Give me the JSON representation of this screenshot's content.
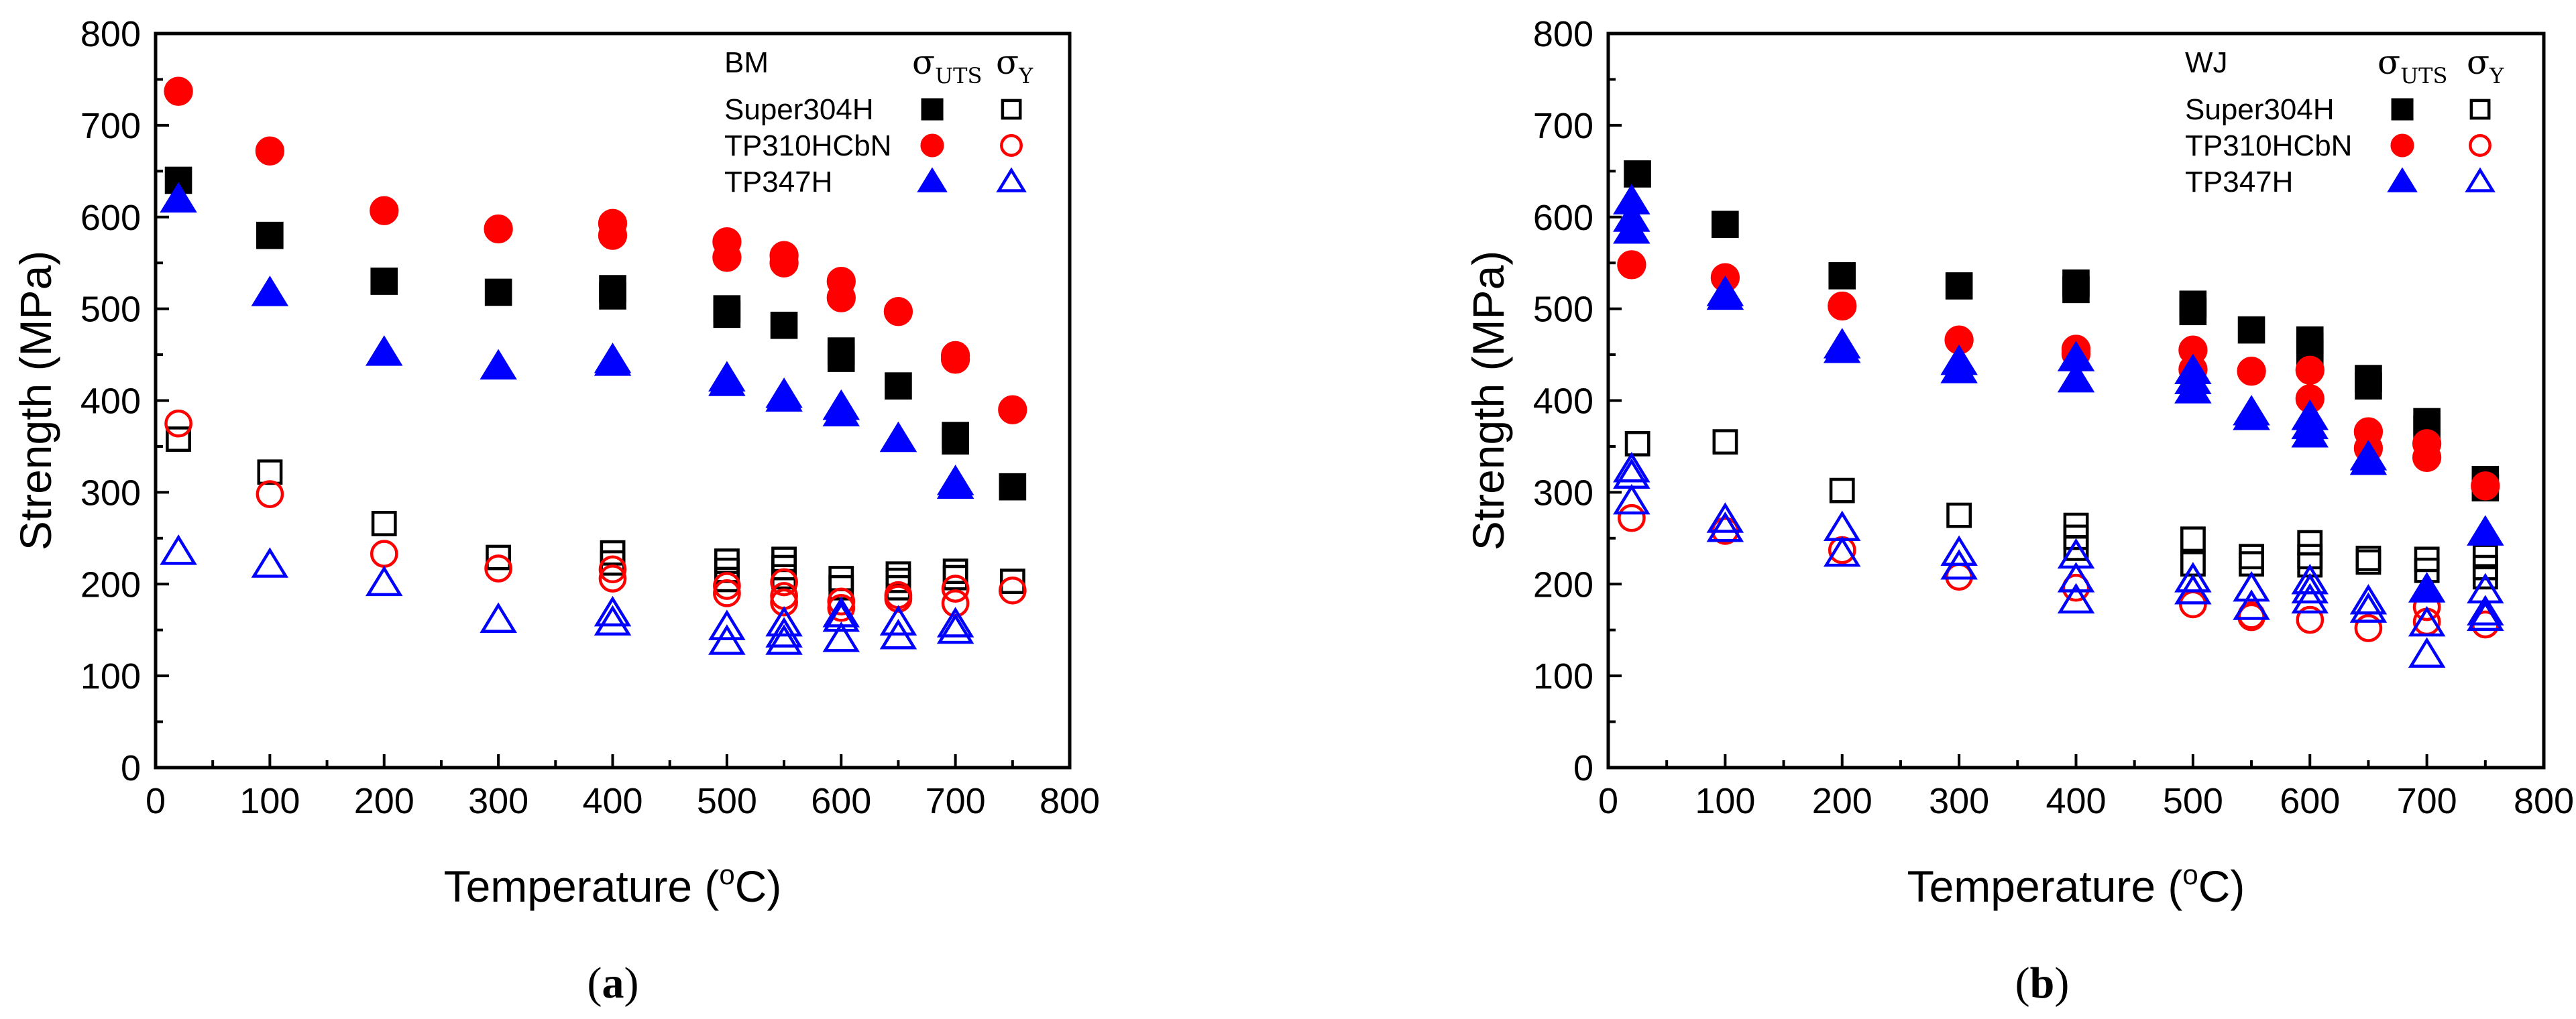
{
  "figure": {
    "panels": [
      {
        "caption_open": "(",
        "caption_letter": "a",
        "caption_close": ")",
        "title": "BM",
        "xlabel_prefix": "Temperature (",
        "xlabel_sup": "o",
        "xlabel_suffix": "C)",
        "ylabel": "Strength (MPa)",
        "legend_header": {
          "uts_sym": "σ",
          "uts_sub": "UTS",
          "y_sym": "σ",
          "y_sub": "Y"
        },
        "legend_entries": [
          "Super304H",
          "TP310HCbN",
          "TP347H"
        ]
      },
      {
        "caption_open": "(",
        "caption_letter": "b",
        "caption_close": ")",
        "title": "WJ",
        "xlabel_prefix": "Temperature (",
        "xlabel_sup": "o",
        "xlabel_suffix": "C)",
        "ylabel": "Strength (MPa)",
        "legend_header": {
          "uts_sym": "σ",
          "uts_sub": "UTS",
          "y_sym": "σ",
          "y_sub": "Y"
        },
        "legend_entries": [
          "Super304H",
          "TP310HCbN",
          "TP347H"
        ]
      }
    ]
  },
  "chart_data": [
    {
      "type": "scatter",
      "title": "BM",
      "xlabel": "Temperature (oC)",
      "ylabel": "Strength (MPa)",
      "xlim": [
        0,
        800
      ],
      "ylim": [
        0,
        800
      ],
      "xticks": [
        0,
        100,
        200,
        300,
        400,
        500,
        600,
        700,
        800
      ],
      "yticks": [
        0,
        100,
        200,
        300,
        400,
        500,
        600,
        700,
        800
      ],
      "grid": false,
      "legend_position": "top-right",
      "series": [
        {
          "name": "Super304H σUTS",
          "marker": "square",
          "fill": "filled",
          "color": "#000000",
          "points": [
            [
              20,
              640
            ],
            [
              100,
              580
            ],
            [
              200,
              530
            ],
            [
              300,
              518
            ],
            [
              400,
              522
            ],
            [
              400,
              514
            ],
            [
              500,
              500
            ],
            [
              500,
              494
            ],
            [
              550,
              482
            ],
            [
              600,
              454
            ],
            [
              600,
              446
            ],
            [
              650,
              416
            ],
            [
              700,
              362
            ],
            [
              700,
              356
            ],
            [
              750,
              306
            ]
          ]
        },
        {
          "name": "TP310HCbN σUTS",
          "marker": "circle",
          "fill": "filled",
          "color": "#ff0000",
          "points": [
            [
              20,
              737
            ],
            [
              100,
              672
            ],
            [
              200,
              607
            ],
            [
              300,
              587
            ],
            [
              400,
              593
            ],
            [
              400,
              580
            ],
            [
              500,
              573
            ],
            [
              500,
              556
            ],
            [
              550,
              558
            ],
            [
              550,
              550
            ],
            [
              600,
              530
            ],
            [
              600,
              512
            ],
            [
              650,
              497
            ],
            [
              700,
              449
            ],
            [
              700,
              445
            ],
            [
              750,
              390
            ]
          ]
        },
        {
          "name": "TP347H σUTS",
          "marker": "triangle",
          "fill": "filled",
          "color": "#0000ff",
          "points": [
            [
              20,
              619
            ],
            [
              100,
              517
            ],
            [
              200,
              452
            ],
            [
              300,
              437
            ],
            [
              400,
              444
            ],
            [
              400,
              441
            ],
            [
              500,
              424
            ],
            [
              500,
              419
            ],
            [
              550,
              406
            ],
            [
              550,
              402
            ],
            [
              600,
              393
            ],
            [
              600,
              386
            ],
            [
              650,
              358
            ],
            [
              700,
              311
            ],
            [
              700,
              307
            ]
          ]
        },
        {
          "name": "Super304H σY",
          "marker": "square",
          "fill": "open",
          "color": "#000000",
          "points": [
            [
              20,
              358
            ],
            [
              100,
              322
            ],
            [
              200,
              266
            ],
            [
              300,
              229
            ],
            [
              400,
              234
            ],
            [
              400,
              223
            ],
            [
              500,
              225
            ],
            [
              500,
              215
            ],
            [
              500,
              205
            ],
            [
              550,
              227
            ],
            [
              550,
              218
            ],
            [
              550,
              208
            ],
            [
              600,
              206
            ],
            [
              600,
              196
            ],
            [
              650,
              211
            ],
            [
              650,
              204
            ],
            [
              650,
              196
            ],
            [
              700,
              214
            ],
            [
              700,
              207
            ],
            [
              750,
              203
            ]
          ]
        },
        {
          "name": "TP310HCbN σY",
          "marker": "circle",
          "fill": "open",
          "color": "#ff0000",
          "points": [
            [
              20,
              375
            ],
            [
              100,
              298
            ],
            [
              200,
              233
            ],
            [
              300,
              217
            ],
            [
              400,
              216
            ],
            [
              400,
              206
            ],
            [
              500,
              198
            ],
            [
              500,
              190
            ],
            [
              550,
              202
            ],
            [
              550,
              187
            ],
            [
              550,
              180
            ],
            [
              600,
              181
            ],
            [
              600,
              174
            ],
            [
              650,
              188
            ],
            [
              650,
              184
            ],
            [
              700,
              195
            ],
            [
              700,
              179
            ],
            [
              750,
              193
            ]
          ]
        },
        {
          "name": "TP347H σY",
          "marker": "triangle",
          "fill": "open",
          "color": "#0000ff",
          "points": [
            [
              20,
              235
            ],
            [
              100,
              221
            ],
            [
              200,
              201
            ],
            [
              300,
              161
            ],
            [
              400,
              168
            ],
            [
              400,
              158
            ],
            [
              500,
              153
            ],
            [
              500,
              137
            ],
            [
              550,
              157
            ],
            [
              550,
              145
            ],
            [
              550,
              137
            ],
            [
              600,
              167
            ],
            [
              600,
              162
            ],
            [
              600,
              140
            ],
            [
              650,
              158
            ],
            [
              650,
              143
            ],
            [
              700,
              156
            ],
            [
              700,
              149
            ]
          ]
        }
      ]
    },
    {
      "type": "scatter",
      "title": "WJ",
      "xlabel": "Temperature (oC)",
      "ylabel": "Strength (MPa)",
      "xlim": [
        0,
        800
      ],
      "ylim": [
        0,
        800
      ],
      "xticks": [
        0,
        100,
        200,
        300,
        400,
        500,
        600,
        700,
        800
      ],
      "yticks": [
        0,
        100,
        200,
        300,
        400,
        500,
        600,
        700,
        800
      ],
      "grid": false,
      "legend_position": "top-right",
      "series": [
        {
          "name": "Super304H σUTS",
          "marker": "square",
          "fill": "filled",
          "color": "#000000",
          "points": [
            [
              25,
              647
            ],
            [
              100,
              592
            ],
            [
              200,
              536
            ],
            [
              300,
              525
            ],
            [
              400,
              528
            ],
            [
              400,
              521
            ],
            [
              500,
              505
            ],
            [
              500,
              497
            ],
            [
              550,
              477
            ],
            [
              600,
              466
            ],
            [
              600,
              459
            ],
            [
              600,
              452
            ],
            [
              650,
              424
            ],
            [
              650,
              416
            ],
            [
              700,
              377
            ],
            [
              700,
              369
            ],
            [
              750,
              314
            ],
            [
              750,
              305
            ]
          ]
        },
        {
          "name": "TP310HCbN σUTS",
          "marker": "circle",
          "fill": "filled",
          "color": "#ff0000",
          "points": [
            [
              20,
              548
            ],
            [
              100,
              534
            ],
            [
              200,
              503
            ],
            [
              300,
              466
            ],
            [
              400,
              456
            ],
            [
              400,
              451
            ],
            [
              500,
              455
            ],
            [
              500,
              434
            ],
            [
              550,
              432
            ],
            [
              600,
              433
            ],
            [
              600,
              402
            ],
            [
              650,
              366
            ],
            [
              650,
              348
            ],
            [
              700,
              353
            ],
            [
              700,
              338
            ],
            [
              750,
              307
            ]
          ]
        },
        {
          "name": "TP347H σUTS",
          "marker": "triangle",
          "fill": "filled",
          "color": "#0000ff",
          "points": [
            [
              20,
              617
            ],
            [
              20,
              598
            ],
            [
              20,
              585
            ],
            [
              100,
              517
            ],
            [
              100,
              513
            ],
            [
              200,
              460
            ],
            [
              200,
              455
            ],
            [
              300,
              442
            ],
            [
              300,
              433
            ],
            [
              400,
              446
            ],
            [
              400,
              423
            ],
            [
              500,
              432
            ],
            [
              500,
              421
            ],
            [
              500,
              411
            ],
            [
              550,
              387
            ],
            [
              550,
              382
            ],
            [
              600,
              382
            ],
            [
              600,
              372
            ],
            [
              600,
              363
            ],
            [
              650,
              338
            ],
            [
              650,
              333
            ],
            [
              700,
              194
            ],
            [
              750,
              256
            ]
          ]
        },
        {
          "name": "Super304H σY",
          "marker": "square",
          "fill": "open",
          "color": "#000000",
          "points": [
            [
              25,
              353
            ],
            [
              100,
              355
            ],
            [
              200,
              302
            ],
            [
              300,
              275
            ],
            [
              400,
              264
            ],
            [
              400,
              251
            ],
            [
              400,
              239
            ],
            [
              500,
              249
            ],
            [
              500,
              222
            ],
            [
              550,
              230
            ],
            [
              550,
              222
            ],
            [
              600,
              245
            ],
            [
              600,
              230
            ],
            [
              600,
              221
            ],
            [
              650,
              228
            ],
            [
              650,
              224
            ],
            [
              700,
              227
            ],
            [
              700,
              215
            ],
            [
              750,
              230
            ],
            [
              750,
              218
            ],
            [
              750,
              208
            ]
          ]
        },
        {
          "name": "TP310HCbN σY",
          "marker": "circle",
          "fill": "open",
          "color": "#ff0000",
          "points": [
            [
              20,
              272
            ],
            [
              100,
              258
            ],
            [
              200,
              237
            ],
            [
              300,
              208
            ],
            [
              400,
              196
            ],
            [
              500,
              178
            ],
            [
              550,
              166
            ],
            [
              550,
              164
            ],
            [
              600,
              161
            ],
            [
              650,
              152
            ],
            [
              700,
              175
            ],
            [
              700,
              159
            ],
            [
              750,
              156
            ]
          ]
        },
        {
          "name": "TP347H σY",
          "marker": "triangle",
          "fill": "open",
          "color": "#0000ff",
          "points": [
            [
              20,
              325
            ],
            [
              20,
              318
            ],
            [
              20,
              290
            ],
            [
              100,
              270
            ],
            [
              100,
              260
            ],
            [
              200,
              261
            ],
            [
              200,
              233
            ],
            [
              300,
              234
            ],
            [
              300,
              219
            ],
            [
              400,
              231
            ],
            [
              400,
              205
            ],
            [
              400,
              182
            ],
            [
              500,
              205
            ],
            [
              500,
              192
            ],
            [
              550,
              195
            ],
            [
              550,
              175
            ],
            [
              600,
              203
            ],
            [
              600,
              193
            ],
            [
              600,
              182
            ],
            [
              650,
              181
            ],
            [
              650,
              172
            ],
            [
              700,
              157
            ],
            [
              700,
              123
            ],
            [
              750,
              193
            ],
            [
              750,
              169
            ],
            [
              750,
              163
            ]
          ]
        }
      ]
    }
  ]
}
